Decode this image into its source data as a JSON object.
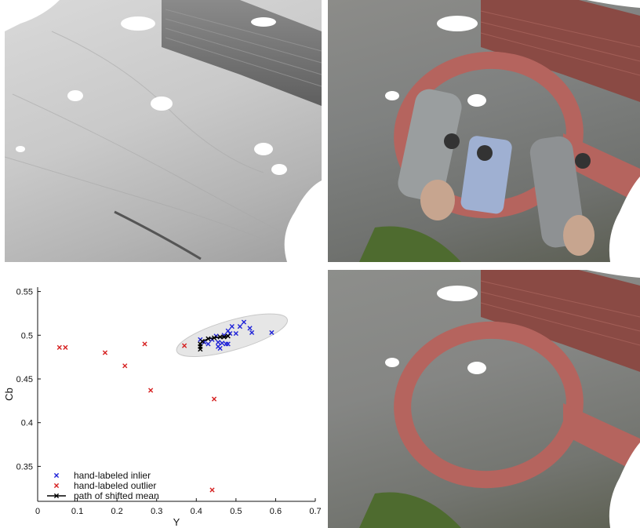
{
  "figure": {
    "panels": [
      {
        "id": "mesh",
        "kind": "grey 3D mesh render of paved ground and brick wall"
      },
      {
        "id": "textured-with-people",
        "kind": "textured reconstruction with projected people"
      },
      {
        "id": "textured-cleaned",
        "kind": "textured reconstruction after removal"
      }
    ]
  },
  "colors": {
    "inlier": "#1f22d8",
    "outlier": "#d62020",
    "mean_path": "#000000",
    "ellipse_fill": "#e6e6e6",
    "ellipse_stroke": "#c8c8c8",
    "brick": "#b5645e",
    "pavement": "#8a8b88",
    "grass": "#4e6b2f"
  },
  "chart_data": {
    "type": "scatter",
    "xlabel": "Y",
    "ylabel": "Cb",
    "xlim": [
      0,
      0.7
    ],
    "ylim": [
      0.31,
      0.555
    ],
    "xticks": [
      "0",
      "0.1",
      "0.2",
      "0.3",
      "0.4",
      "0.5",
      "0.6",
      "0.7"
    ],
    "yticks": [
      "0.35",
      "0.4",
      "0.45",
      "0.5",
      "0.55"
    ],
    "grid": false,
    "legend_position": "bottom-left",
    "series": [
      {
        "name": "hand-labeled inlier",
        "marker": "x",
        "values": [
          [
            0.41,
            0.495
          ],
          [
            0.42,
            0.492
          ],
          [
            0.43,
            0.49
          ],
          [
            0.44,
            0.495
          ],
          [
            0.45,
            0.499
          ],
          [
            0.455,
            0.492
          ],
          [
            0.455,
            0.487
          ],
          [
            0.46,
            0.485
          ],
          [
            0.465,
            0.491
          ],
          [
            0.47,
            0.5
          ],
          [
            0.475,
            0.49
          ],
          [
            0.48,
            0.49
          ],
          [
            0.48,
            0.505
          ],
          [
            0.485,
            0.502
          ],
          [
            0.49,
            0.51
          ],
          [
            0.5,
            0.502
          ],
          [
            0.51,
            0.51
          ],
          [
            0.52,
            0.515
          ],
          [
            0.535,
            0.508
          ],
          [
            0.54,
            0.503
          ],
          [
            0.59,
            0.503
          ]
        ]
      },
      {
        "name": "hand-labeled outlier",
        "marker": "x",
        "values": [
          [
            0.055,
            0.486
          ],
          [
            0.07,
            0.486
          ],
          [
            0.17,
            0.48
          ],
          [
            0.22,
            0.465
          ],
          [
            0.27,
            0.49
          ],
          [
            0.285,
            0.437
          ],
          [
            0.37,
            0.488
          ],
          [
            0.445,
            0.427
          ],
          [
            0.44,
            0.323
          ]
        ]
      },
      {
        "name": "path of shifted mean",
        "marker": "x-line",
        "values": [
          [
            0.41,
            0.484
          ],
          [
            0.41,
            0.487
          ],
          [
            0.41,
            0.49
          ],
          [
            0.415,
            0.493
          ],
          [
            0.43,
            0.496
          ],
          [
            0.445,
            0.497
          ],
          [
            0.46,
            0.498
          ],
          [
            0.47,
            0.498
          ],
          [
            0.48,
            0.499
          ]
        ]
      }
    ],
    "cluster_ellipse": {
      "center": [
        0.49,
        0.5
      ],
      "semi_x": 0.145,
      "semi_y": 0.017,
      "angle_deg": -16
    }
  }
}
